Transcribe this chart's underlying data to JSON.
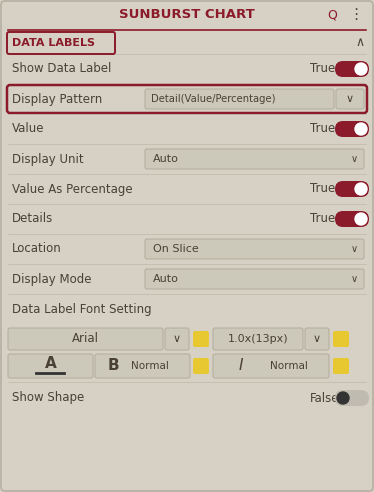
{
  "title": "SUNBURST CHART",
  "bg_color": "#d6d1c4",
  "border_color": "#8b1a2a",
  "title_color": "#8b1a2a",
  "title_fontsize": 9.5,
  "label_color": "#4a4035",
  "toggle_on_color": "#8b1a2a",
  "dropdown_bg": "#ccc9bb",
  "dropdown_border": "#b5b0a0",
  "section_header": "DATA LABELS",
  "section_header_color": "#8b1a2a",
  "yellow_color": "#e8c830",
  "dark_circle_color": "#222222",
  "divider_color": "#8b1a2a",
  "row_divider_color": "#bbb8aa",
  "caret_up": "∧",
  "search_icon": "Q",
  "menu_icon": "⋮"
}
